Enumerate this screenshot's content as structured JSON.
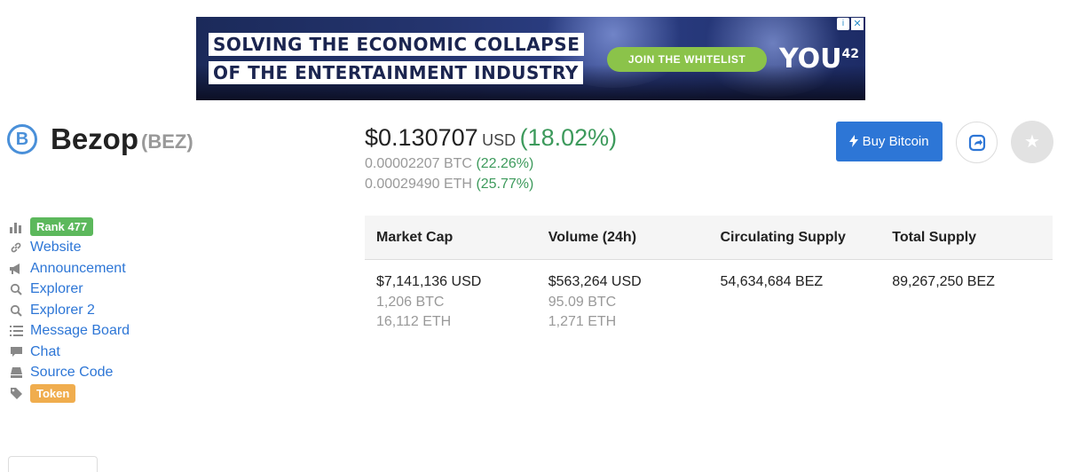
{
  "ad": {
    "headline_line1": "SOLVING THE ECONOMIC COLLAPSE",
    "headline_line2": "OF THE ENTERTAINMENT INDUSTRY",
    "cta": "JOIN THE WHITELIST",
    "brand": "YOU42",
    "icons": [
      "adchoices-icon",
      "close-icon"
    ]
  },
  "coin": {
    "logo_letter": "B",
    "name": "Bezop",
    "symbol": "(BEZ)"
  },
  "price": {
    "usd_value": "$0.130707",
    "usd_unit": "USD",
    "usd_change": "(18.02%)",
    "btc_value": "0.00002207 BTC",
    "btc_change": "(22.26%)",
    "eth_value": "0.00029490 ETH",
    "eth_change": "(25.77%)"
  },
  "actions": {
    "buy_label": "Buy Bitcoin",
    "icons": [
      "lightning-icon",
      "share-icon",
      "star-icon"
    ]
  },
  "sidebar": {
    "rank": "Rank 477",
    "links": [
      {
        "label": "Website",
        "icon": "link-icon"
      },
      {
        "label": "Announcement",
        "icon": "megaphone-icon"
      },
      {
        "label": "Explorer",
        "icon": "search-icon"
      },
      {
        "label": "Explorer 2",
        "icon": "search-icon"
      },
      {
        "label": "Message Board",
        "icon": "list-icon"
      },
      {
        "label": "Chat",
        "icon": "chat-icon"
      },
      {
        "label": "Source Code",
        "icon": "server-icon"
      }
    ],
    "token_badge": "Token"
  },
  "stats": {
    "headers": [
      "Market Cap",
      "Volume (24h)",
      "Circulating Supply",
      "Total Supply"
    ],
    "market_cap": {
      "usd": "$7,141,136 USD",
      "btc": "1,206 BTC",
      "eth": "16,112 ETH"
    },
    "volume": {
      "usd": "$563,264 USD",
      "btc": "95.09 BTC",
      "eth": "1,271 ETH"
    },
    "circulating_supply": "54,634,684 BEZ",
    "total_supply": "89,267,250 BEZ"
  },
  "colors": {
    "accent_blue": "#2d76d6",
    "positive_green": "#3d9a5c",
    "rank_badge": "#5cb85c",
    "token_badge": "#f0ad4e"
  }
}
